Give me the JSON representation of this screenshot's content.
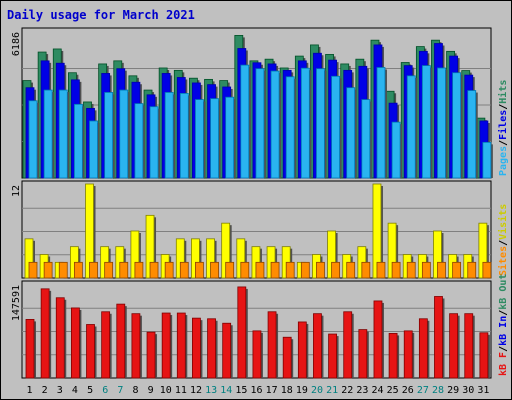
{
  "title": "Daily usage for March 2021",
  "colors": {
    "hits": "#2e8b62",
    "files": "#0000e6",
    "pages": "#2ab4f0",
    "visits": "#ffff00",
    "sites": "#ff8c00",
    "kbytes": "#e61414",
    "weekend_label": "#008080",
    "weekday_label": "#000000"
  },
  "chart_data": [
    {
      "type": "bar",
      "panel": "hits_files_pages",
      "ymax_label": "6186",
      "ymax": 6186,
      "legend": [
        {
          "text": "Pages",
          "color": "#2ab4f0"
        },
        {
          "text": "/",
          "color": "#000000"
        },
        {
          "text": "Files",
          "color": "#0000e6"
        },
        {
          "text": "/",
          "color": "#000000"
        },
        {
          "text": "Hits",
          "color": "#2e8b62"
        }
      ],
      "categories": [
        "1",
        "2",
        "3",
        "4",
        "5",
        "6",
        "7",
        "8",
        "9",
        "10",
        "11",
        "12",
        "13",
        "14",
        "15",
        "16",
        "17",
        "18",
        "19",
        "20",
        "21",
        "22",
        "23",
        "24",
        "25",
        "26",
        "27",
        "28",
        "29",
        "30",
        "31"
      ],
      "series": [
        {
          "name": "Hits",
          "values": [
            4100,
            5300,
            5430,
            4430,
            3200,
            4800,
            4930,
            4300,
            3700,
            4630,
            4530,
            4200,
            4150,
            4100,
            6000,
            4930,
            5000,
            4630,
            5130,
            5600,
            5200,
            4800,
            5000,
            5800,
            3650,
            4860,
            5530,
            5800,
            5330,
            4520,
            2520
          ]
        },
        {
          "name": "Files",
          "values": [
            3800,
            4930,
            4830,
            4130,
            2930,
            4400,
            4600,
            4030,
            3500,
            4400,
            4230,
            4000,
            3930,
            3830,
            5450,
            4850,
            4800,
            4530,
            4930,
            5250,
            4960,
            4530,
            4700,
            5600,
            3150,
            4730,
            5330,
            5660,
            5130,
            4330,
            2400
          ]
        },
        {
          "name": "Pages",
          "values": [
            3250,
            3700,
            3700,
            3100,
            2400,
            3600,
            3700,
            3130,
            3000,
            3600,
            3560,
            3300,
            3340,
            3400,
            4750,
            4600,
            4500,
            4260,
            4620,
            4600,
            4280,
            3800,
            3300,
            4650,
            2350,
            4300,
            4730,
            4630,
            4430,
            3680,
            1500
          ]
        }
      ]
    },
    {
      "type": "bar",
      "panel": "visits_sites",
      "ymax_label": "12",
      "ymax": 12,
      "legend": [
        {
          "text": "Sites",
          "color": "#ff8c00"
        },
        {
          "text": "/",
          "color": "#000000"
        },
        {
          "text": "Visits",
          "color": "#cccc00"
        }
      ],
      "categories": [
        "1",
        "2",
        "3",
        "4",
        "5",
        "6",
        "7",
        "8",
        "9",
        "10",
        "11",
        "12",
        "13",
        "14",
        "15",
        "16",
        "17",
        "18",
        "19",
        "20",
        "21",
        "22",
        "23",
        "24",
        "25",
        "26",
        "27",
        "28",
        "29",
        "30",
        "31"
      ],
      "series": [
        {
          "name": "Visits",
          "values": [
            5,
            3,
            2,
            4,
            12,
            4,
            4,
            6,
            8,
            3,
            5,
            5,
            5,
            7,
            5,
            4,
            4,
            4,
            2,
            3,
            6,
            3,
            4,
            12,
            7,
            3,
            3,
            6,
            3,
            3,
            7
          ]
        },
        {
          "name": "Sites",
          "values": [
            2,
            2,
            2,
            2,
            2,
            2,
            2,
            2,
            2,
            2,
            2,
            2,
            2,
            2,
            2,
            2,
            2,
            2,
            2,
            2,
            2,
            2,
            2,
            2,
            2,
            2,
            2,
            2,
            2,
            2,
            2
          ]
        }
      ]
    },
    {
      "type": "bar",
      "panel": "kbytes",
      "ymax_label": "147591",
      "ymax": 147591,
      "legend": [
        {
          "text": "kB F",
          "color": "#e61414"
        },
        {
          "text": "/",
          "color": "#000000"
        },
        {
          "text": "kB In",
          "color": "#0000e6"
        },
        {
          "text": "/",
          "color": "#000000"
        },
        {
          "text": "kB Out",
          "color": "#2e8b62"
        }
      ],
      "categories": [
        "1",
        "2",
        "3",
        "4",
        "5",
        "6",
        "7",
        "8",
        "9",
        "10",
        "11",
        "12",
        "13",
        "14",
        "15",
        "16",
        "17",
        "18",
        "19",
        "20",
        "21",
        "22",
        "23",
        "24",
        "25",
        "26",
        "27",
        "28",
        "29",
        "30",
        "31"
      ],
      "series": [
        {
          "name": "kB F",
          "values": [
            92000,
            140000,
            126000,
            110000,
            84000,
            104000,
            116000,
            101000,
            72000,
            102000,
            102000,
            94000,
            93000,
            86000,
            143000,
            74000,
            104000,
            64000,
            88000,
            101000,
            69000,
            104000,
            76000,
            121000,
            70000,
            74000,
            93000,
            128000,
            101000,
            101000,
            71000
          ]
        }
      ],
      "weekend_days": [
        6,
        7,
        13,
        14,
        20,
        21,
        27,
        28
      ]
    }
  ]
}
